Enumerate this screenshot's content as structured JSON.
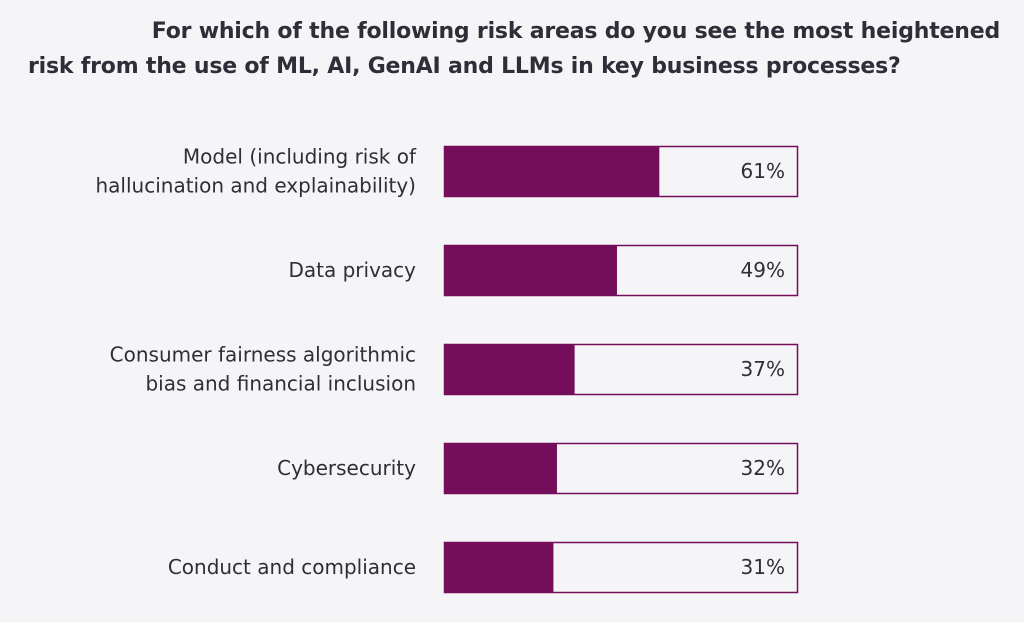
{
  "chart_data": {
    "type": "bar",
    "orientation": "horizontal",
    "title_line1": "For which of the following risk areas do you see the most heightened",
    "title_line2": "risk from the use of ML, AI, GenAI and LLMs in key business processes?",
    "categories": [
      [
        "Model (including risk of",
        "hallucination and explainability)"
      ],
      [
        "Data privacy"
      ],
      [
        "Consumer fairness algorithmic",
        "bias and financial inclusion"
      ],
      [
        "Cybersecurity"
      ],
      [
        "Conduct and compliance"
      ]
    ],
    "values": [
      61,
      49,
      37,
      32,
      31
    ],
    "value_labels": [
      "61%",
      "49%",
      "37%",
      "32%",
      "31%"
    ],
    "xlim": [
      0,
      100
    ],
    "unit": "%",
    "grid": false,
    "legend": "none",
    "colors": {
      "fill": "#740e5b",
      "outline": "#740e5b",
      "track": "#f5f5f7"
    }
  }
}
